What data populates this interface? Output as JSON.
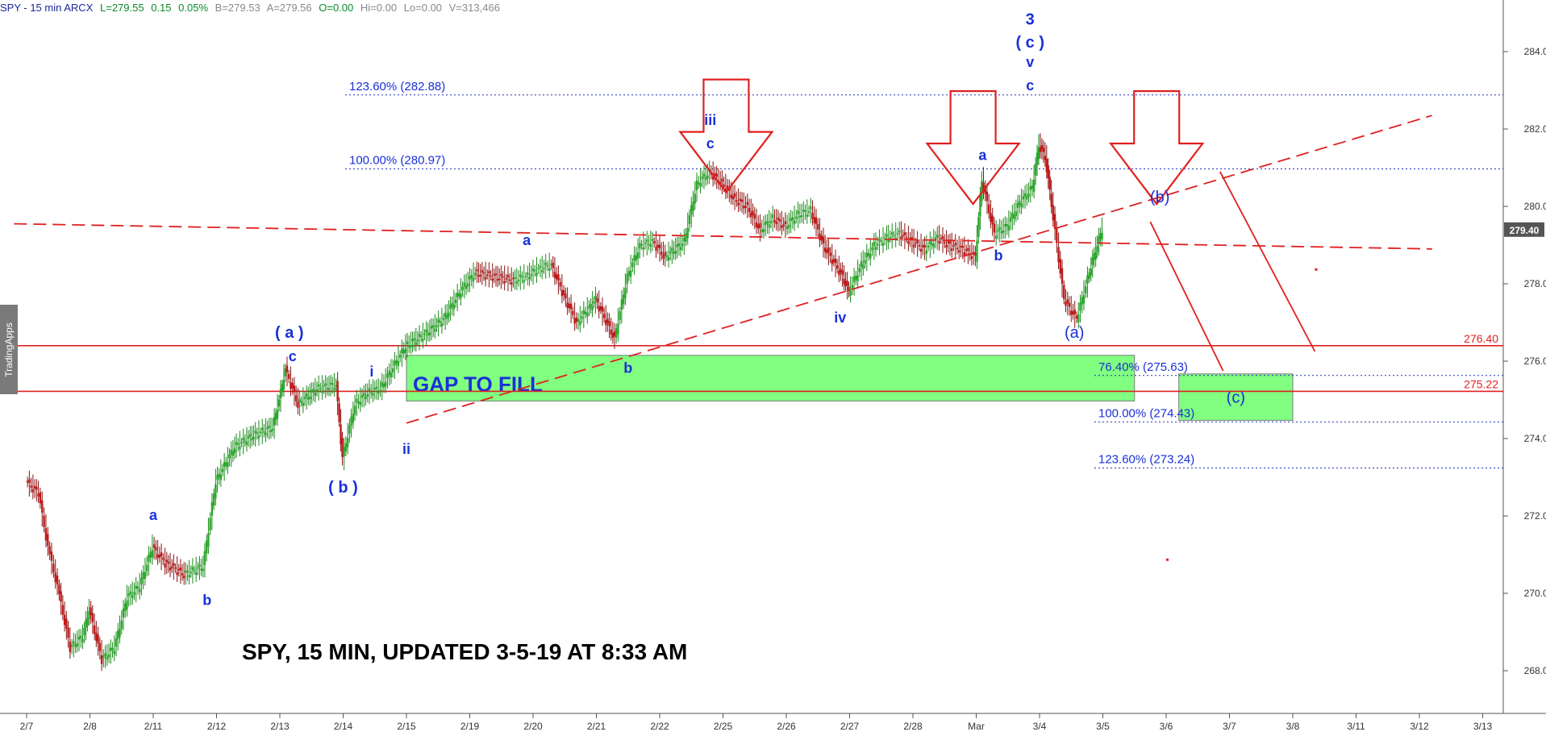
{
  "header": {
    "symbol": "SPY - 15 min ARCX",
    "last": "L=279.55",
    "change": "0.15",
    "change_pct": "0.05%",
    "bid": "B=279.53",
    "ask": "A=279.56",
    "open": "O=0.00",
    "high": "Hi=0.00",
    "low": "Lo=0.00",
    "volume": "V=313,466"
  },
  "watermark": "TradingApps",
  "chart_data": {
    "type": "candlestick",
    "title": "SPY, 15 MIN, UPDATED 3-5-19 AT 8:33 AM",
    "x_ticks": [
      "2/7",
      "2/8",
      "2/11",
      "2/12",
      "2/13",
      "2/14",
      "2/15",
      "2/19",
      "2/20",
      "2/21",
      "2/22",
      "2/25",
      "2/26",
      "2/27",
      "2/28",
      "Mar",
      "3/4",
      "3/5",
      "3/6",
      "3/7",
      "3/8",
      "3/11",
      "3/12",
      "3/13"
    ],
    "y_ticks": [
      268.0,
      270.0,
      272.0,
      274.0,
      276.0,
      278.0,
      280.0,
      282.0,
      284.0
    ],
    "ylim": [
      267.4,
      284.6
    ],
    "last_price": "279.40",
    "price_path": [
      [
        0,
        272.9
      ],
      [
        0.2,
        272.6
      ],
      [
        0.35,
        271.2
      ],
      [
        0.5,
        270.2
      ],
      [
        0.7,
        268.6
      ],
      [
        0.9,
        268.9
      ],
      [
        1.0,
        269.6
      ],
      [
        1.2,
        268.3
      ],
      [
        1.4,
        268.6
      ],
      [
        1.6,
        269.9
      ],
      [
        1.8,
        270.2
      ],
      [
        2.0,
        271.2
      ],
      [
        2.2,
        270.8
      ],
      [
        2.5,
        270.5
      ],
      [
        2.8,
        270.7
      ],
      [
        3.0,
        272.9
      ],
      [
        3.3,
        273.8
      ],
      [
        3.6,
        274.1
      ],
      [
        3.9,
        274.3
      ],
      [
        4.0,
        275.0
      ],
      [
        4.1,
        275.8
      ],
      [
        4.3,
        274.9
      ],
      [
        4.6,
        275.3
      ],
      [
        4.9,
        275.4
      ],
      [
        5.0,
        273.5
      ],
      [
        5.2,
        274.9
      ],
      [
        5.4,
        275.2
      ],
      [
        5.6,
        275.3
      ],
      [
        6.0,
        276.4
      ],
      [
        6.3,
        276.7
      ],
      [
        6.6,
        277.1
      ],
      [
        6.9,
        277.9
      ],
      [
        7.1,
        278.3
      ],
      [
        7.4,
        278.2
      ],
      [
        7.7,
        278.1
      ],
      [
        7.9,
        278.2
      ],
      [
        8.1,
        278.4
      ],
      [
        8.3,
        278.5
      ],
      [
        8.5,
        277.7
      ],
      [
        8.7,
        277.0
      ],
      [
        8.9,
        277.4
      ],
      [
        9.0,
        277.6
      ],
      [
        9.3,
        276.6
      ],
      [
        9.5,
        278.2
      ],
      [
        9.7,
        279.0
      ],
      [
        9.9,
        279.1
      ],
      [
        10.1,
        278.7
      ],
      [
        10.4,
        279.1
      ],
      [
        10.6,
        280.6
      ],
      [
        10.8,
        280.9
      ],
      [
        11.0,
        280.6
      ],
      [
        11.2,
        280.2
      ],
      [
        11.4,
        280.0
      ],
      [
        11.6,
        279.4
      ],
      [
        11.8,
        279.7
      ],
      [
        12.0,
        279.5
      ],
      [
        12.2,
        279.8
      ],
      [
        12.4,
        279.9
      ],
      [
        12.6,
        279.0
      ],
      [
        12.9,
        278.2
      ],
      [
        13.0,
        277.8
      ],
      [
        13.2,
        278.5
      ],
      [
        13.4,
        279.0
      ],
      [
        13.6,
        279.2
      ],
      [
        13.8,
        279.3
      ],
      [
        14.0,
        279.1
      ],
      [
        14.2,
        278.9
      ],
      [
        14.4,
        279.2
      ],
      [
        14.6,
        279.0
      ],
      [
        14.8,
        278.9
      ],
      [
        15.0,
        278.7
      ],
      [
        15.1,
        280.7
      ],
      [
        15.3,
        279.3
      ],
      [
        15.5,
        279.5
      ],
      [
        15.7,
        280.1
      ],
      [
        15.9,
        280.5
      ],
      [
        16.0,
        281.6
      ],
      [
        16.1,
        281.3
      ],
      [
        16.2,
        280.1
      ],
      [
        16.4,
        277.6
      ],
      [
        16.6,
        277.1
      ],
      [
        16.8,
        278.3
      ],
      [
        16.9,
        278.9
      ],
      [
        17.0,
        279.4
      ]
    ],
    "fib_levels": [
      {
        "label": "123.60% (282.88)",
        "value": 282.88
      },
      {
        "label": "100.00% (280.97)",
        "value": 280.97
      },
      {
        "label": "76.40% (275.63)",
        "value": 275.63
      },
      {
        "label": "100.00% (274.43)",
        "value": 274.43
      },
      {
        "label": "123.60% (273.24)",
        "value": 273.24
      }
    ],
    "horizontal_levels": [
      {
        "label": "276.40",
        "value": 276.4,
        "color": "#e02020"
      },
      {
        "label": "275.22",
        "value": 275.22,
        "color": "#e02020"
      }
    ],
    "boxes": [
      {
        "label": "GAP TO FILL",
        "x0": 6.0,
        "x1": 17.5,
        "y0": 274.97,
        "y1": 276.15,
        "color": "#80ff80"
      },
      {
        "label": "(c)",
        "x0": 18.2,
        "x1": 20.0,
        "y0": 274.47,
        "y1": 275.67,
        "color": "#80ff80"
      }
    ],
    "wave_labels": [
      {
        "text": "a",
        "x": 2.0,
        "y": 271.9
      },
      {
        "text": "b",
        "x": 2.85,
        "y": 269.7
      },
      {
        "text": "( a )",
        "x": 4.15,
        "y": 276.6
      },
      {
        "text": "c",
        "x": 4.2,
        "y": 276.0
      },
      {
        "text": "( b )",
        "x": 5.0,
        "y": 272.6
      },
      {
        "text": "i",
        "x": 5.45,
        "y": 275.6
      },
      {
        "text": "ii",
        "x": 6.0,
        "y": 273.6
      },
      {
        "text": "a",
        "x": 7.9,
        "y": 279.0
      },
      {
        "text": "b",
        "x": 9.5,
        "y": 275.7
      },
      {
        "text": "iii",
        "x": 10.8,
        "y": 282.1
      },
      {
        "text": "c",
        "x": 10.8,
        "y": 281.5
      },
      {
        "text": "iv",
        "x": 12.85,
        "y": 277.0
      },
      {
        "text": "a",
        "x": 15.1,
        "y": 281.2
      },
      {
        "text": "b",
        "x": 15.35,
        "y": 278.6
      },
      {
        "text": "3",
        "x": 15.85,
        "y": 284.7
      },
      {
        "text": "( c )",
        "x": 15.85,
        "y": 284.1
      },
      {
        "text": "v",
        "x": 15.85,
        "y": 283.6
      },
      {
        "text": "c",
        "x": 15.85,
        "y": 283.0
      },
      {
        "text": "(a)",
        "x": 16.55,
        "y": 276.6
      },
      {
        "text": "(b)",
        "x": 17.9,
        "y": 280.1
      }
    ],
    "trendlines": [
      {
        "x0": -0.2,
        "y0": 279.55,
        "x1": 22.2,
        "y1": 278.9,
        "style": "dashed"
      },
      {
        "x0": 6.0,
        "y0": 274.4,
        "x1": 22.2,
        "y1": 282.35,
        "style": "dashed"
      },
      {
        "x0": 17.75,
        "y0": 279.6,
        "x1": 18.9,
        "y1": 275.75,
        "style": "solid"
      },
      {
        "x0": 18.85,
        "y0": 280.9,
        "x1": 20.35,
        "y1": 276.25,
        "style": "solid"
      }
    ],
    "arrows": [
      {
        "x": 11.05,
        "y": 282.55
      },
      {
        "x": 14.95,
        "y": 282.25
      },
      {
        "x": 17.85,
        "y": 282.25
      }
    ],
    "stray_marks": [
      {
        "x": 20.35,
        "y": 278.4
      },
      {
        "x": 18.0,
        "y": 270.9
      }
    ]
  }
}
